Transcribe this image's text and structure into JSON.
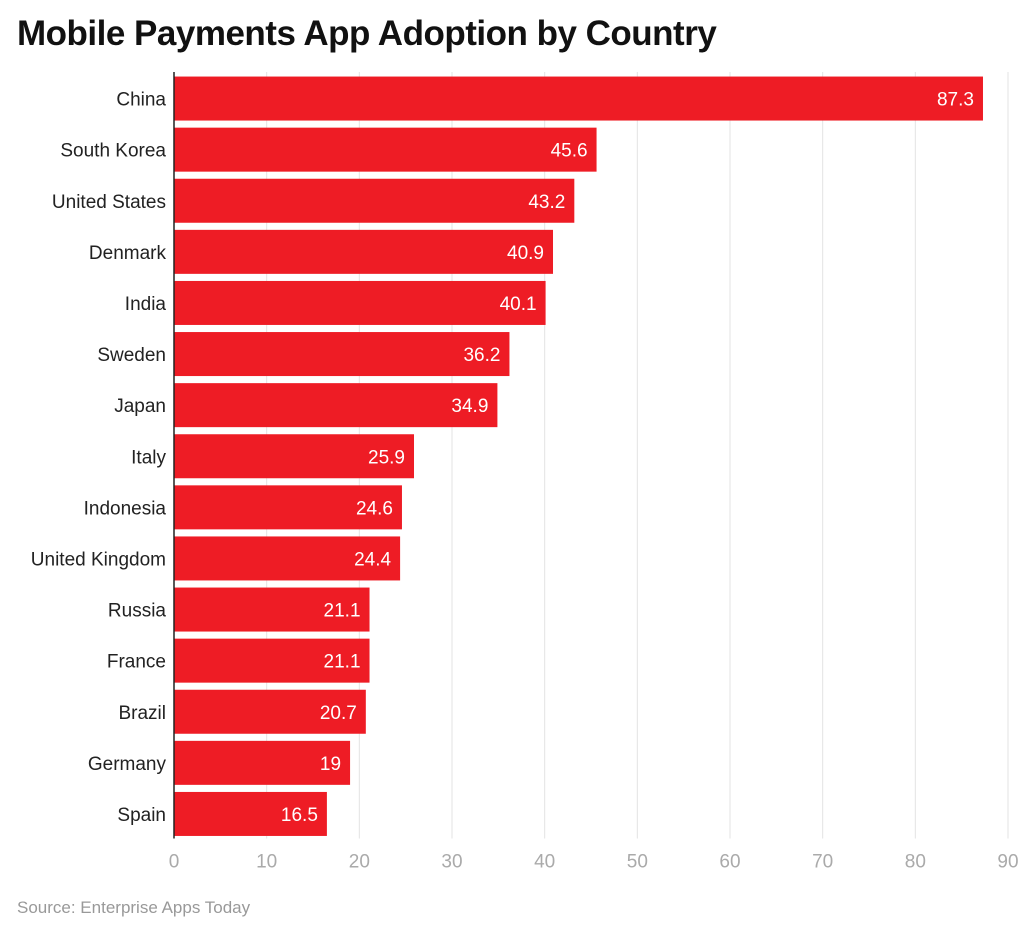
{
  "chart_data": {
    "type": "bar",
    "orientation": "horizontal",
    "title": "Mobile Payments App Adoption by Country",
    "categories": [
      "China",
      "South Korea",
      "United States",
      "Denmark",
      "India",
      "Sweden",
      "Japan",
      "Italy",
      "Indonesia",
      "United Kingdom",
      "Russia",
      "France",
      "Brazil",
      "Germany",
      "Spain"
    ],
    "values": [
      87.3,
      45.6,
      43.2,
      40.9,
      40.1,
      36.2,
      34.9,
      25.9,
      24.6,
      24.4,
      21.1,
      21.1,
      20.7,
      19,
      16.5
    ],
    "value_labels": [
      "87.3",
      "45.6",
      "43.2",
      "40.9",
      "40.1",
      "36.2",
      "34.9",
      "25.9",
      "24.6",
      "24.4",
      "21.1",
      "21.1",
      "20.7",
      "19",
      "16.5"
    ],
    "xlim": [
      0,
      90
    ],
    "xticks": [
      "0",
      "10",
      "20",
      "30",
      "40",
      "50",
      "60",
      "70",
      "80",
      "90"
    ],
    "xlabel": "",
    "ylabel": "",
    "grid": true,
    "bar_color": "#ee1c25",
    "source": "Source: Enterprise Apps Today"
  }
}
